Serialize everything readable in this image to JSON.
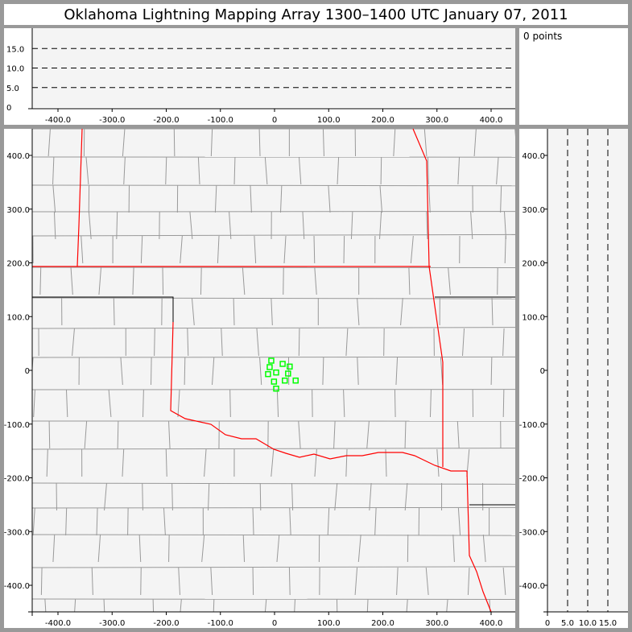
{
  "title": "Oklahoma Lightning Mapping Array   1300–1400 UTC  January 07, 2011",
  "legend": {
    "count_label": "0 points"
  },
  "colors": {
    "points": "#00ff00",
    "state_border": "#ff0000",
    "county_border": "#999999",
    "plot_bg": "#f4f4f4"
  },
  "chart_data": [
    {
      "type": "line",
      "panel": "altitude-vs-east-west",
      "xlabel": "",
      "ylabel": "",
      "xlim": [
        -450,
        450
      ],
      "ylim": [
        0,
        20
      ],
      "xticks": [
        "-400.0",
        "-300.0",
        "-200.0",
        "-100.0",
        "0",
        "100.0",
        "200.0",
        "300.0",
        "400.0"
      ],
      "yticks": [
        "0",
        "5.0",
        "10.0",
        "15.0"
      ],
      "reference_lines_y": [
        5,
        10,
        15
      ],
      "points": []
    },
    {
      "type": "scatter",
      "panel": "plan-view-map",
      "xlabel": "",
      "ylabel": "",
      "xlim": [
        -450,
        445
      ],
      "ylim": [
        -445,
        450
      ],
      "xticks": [
        "-400.0",
        "-300.0",
        "-200.0",
        "-100.0",
        "0",
        "100.0",
        "200.0",
        "300.0",
        "400.0"
      ],
      "yticks": [
        "-400.0",
        "-300.0",
        "-200.0",
        "-100.0",
        "0",
        "100.0",
        "200.0",
        "300.0",
        "400.0"
      ],
      "points": [
        {
          "x": -6,
          "y": 18
        },
        {
          "x": -9,
          "y": 6
        },
        {
          "x": -12,
          "y": -7
        },
        {
          "x": 3,
          "y": -4
        },
        {
          "x": 15,
          "y": 12
        },
        {
          "x": 28,
          "y": 7
        },
        {
          "x": 25,
          "y": -6
        },
        {
          "x": -1,
          "y": -21
        },
        {
          "x": 19,
          "y": -19
        },
        {
          "x": 39,
          "y": -19
        },
        {
          "x": 3,
          "y": -34
        }
      ]
    },
    {
      "type": "line",
      "panel": "north-south-vs-altitude",
      "xlabel": "",
      "ylabel": "",
      "xlim": [
        0,
        20
      ],
      "ylim": [
        -445,
        450
      ],
      "xticks": [
        "0",
        "5.0",
        "10.0",
        "15.0"
      ],
      "reference_lines_x": [
        5,
        10,
        15
      ],
      "points": []
    }
  ]
}
